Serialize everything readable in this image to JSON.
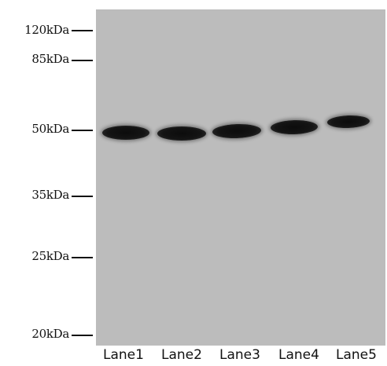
{
  "markers": [
    {
      "label": "120kDa"
    },
    {
      "label": "85kDa"
    },
    {
      "label": "50kDa"
    },
    {
      "label": "35kDa"
    },
    {
      "label": "25kDa"
    },
    {
      "label": "20kDa"
    }
  ],
  "lanes": [
    {
      "label": "Lane1"
    },
    {
      "label": "Lane2"
    },
    {
      "label": "Lane3"
    },
    {
      "label": "Lane4"
    },
    {
      "label": "Lane5"
    }
  ]
}
